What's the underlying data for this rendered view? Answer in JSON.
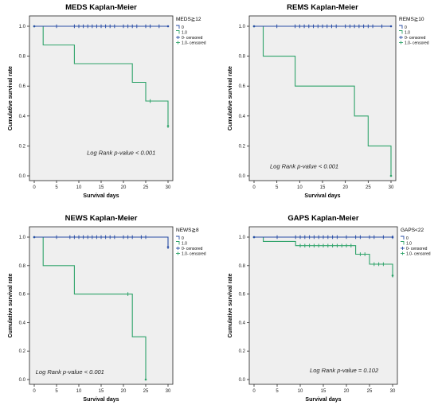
{
  "colors": {
    "blue": "#2a4ea6",
    "green": "#2fa36a",
    "panel_bg": "#efefef"
  },
  "chart_data": [
    {
      "type": "line",
      "title": "MEDS Kaplan-Meier",
      "xlabel": "Survival days",
      "ylabel": "Cumulative survival rate",
      "xlim": [
        0,
        30
      ],
      "ylim": [
        0,
        1
      ],
      "x_ticks": [
        "0",
        "5",
        "10",
        "15",
        "20",
        "25",
        "30"
      ],
      "y_ticks": [
        "0.0",
        "0.2",
        "0.4",
        "0.6",
        "0.8",
        "1.0"
      ],
      "legend_title": "MEDS≧12",
      "legend": [
        "0",
        "1.0",
        "0- censored",
        "1.0- censored"
      ],
      "annotation": "Log Rank p-value < 0.001",
      "series": [
        {
          "name": "0",
          "color": "#2a4ea6",
          "steps": [
            [
              0,
              1.0
            ],
            [
              30,
              1.0
            ]
          ],
          "censored": [
            [
              5,
              1.0
            ],
            [
              9,
              1.0
            ],
            [
              10,
              1.0
            ],
            [
              11,
              1.0
            ],
            [
              12,
              1.0
            ],
            [
              13,
              1.0
            ],
            [
              14,
              1.0
            ],
            [
              15,
              1.0
            ],
            [
              16,
              1.0
            ],
            [
              17,
              1.0
            ],
            [
              18,
              1.0
            ],
            [
              20,
              1.0
            ],
            [
              21,
              1.0
            ],
            [
              22,
              1.0
            ],
            [
              23,
              1.0
            ],
            [
              25,
              1.0
            ],
            [
              26,
              1.0
            ],
            [
              28,
              1.0
            ]
          ]
        },
        {
          "name": "1.0",
          "color": "#2fa36a",
          "steps": [
            [
              0,
              1.0
            ],
            [
              2,
              0.875
            ],
            [
              9,
              0.75
            ],
            [
              22,
              0.625
            ],
            [
              25,
              0.5
            ],
            [
              30,
              0.333
            ]
          ],
          "censored": [
            [
              26,
              0.5
            ],
            [
              30,
              0.333
            ]
          ]
        }
      ]
    },
    {
      "type": "line",
      "title": "REMS Kaplan-Meier",
      "xlabel": "Survival days",
      "ylabel": "Cumulative survival rate",
      "xlim": [
        0,
        30
      ],
      "ylim": [
        0,
        1
      ],
      "x_ticks": [
        "0",
        "5",
        "10",
        "15",
        "20",
        "25",
        "30"
      ],
      "y_ticks": [
        "0.0",
        "0.2",
        "0.4",
        "0.6",
        "0.8",
        "1.0"
      ],
      "legend_title": "REMS≧10",
      "legend": [
        "0",
        "1.0",
        "0- censored",
        "1.0- censored"
      ],
      "annotation": "Log Rank p-value < 0.001",
      "series": [
        {
          "name": "0",
          "color": "#2a4ea6",
          "steps": [
            [
              0,
              1.0
            ],
            [
              30,
              1.0
            ]
          ],
          "censored": [
            [
              5,
              1.0
            ],
            [
              9,
              1.0
            ],
            [
              10,
              1.0
            ],
            [
              11,
              1.0
            ],
            [
              12,
              1.0
            ],
            [
              13,
              1.0
            ],
            [
              14,
              1.0
            ],
            [
              15,
              1.0
            ],
            [
              16,
              1.0
            ],
            [
              17,
              1.0
            ],
            [
              18,
              1.0
            ],
            [
              20,
              1.0
            ],
            [
              21,
              1.0
            ],
            [
              22,
              1.0
            ],
            [
              23,
              1.0
            ],
            [
              24,
              1.0
            ],
            [
              25,
              1.0
            ],
            [
              26,
              1.0
            ],
            [
              28,
              1.0
            ]
          ]
        },
        {
          "name": "1.0",
          "color": "#2fa36a",
          "steps": [
            [
              0,
              1.0
            ],
            [
              2,
              0.8
            ],
            [
              9,
              0.6
            ],
            [
              22,
              0.4
            ],
            [
              25,
              0.2
            ],
            [
              30,
              0.0
            ]
          ],
          "censored": []
        }
      ]
    },
    {
      "type": "line",
      "title": "NEWS Kaplan-Meier",
      "xlabel": "Survival days",
      "ylabel": "Cumulative survival rate",
      "xlim": [
        0,
        30
      ],
      "ylim": [
        0,
        1
      ],
      "x_ticks": [
        "0",
        "5",
        "10",
        "15",
        "20",
        "25",
        "30"
      ],
      "y_ticks": [
        "0.0",
        "0.2",
        "0.4",
        "0.6",
        "0.8",
        "1.0"
      ],
      "legend_title": "NEWS≧8",
      "legend": [
        "0",
        "1.0",
        "0- censored",
        "1.0- censored"
      ],
      "annotation": "Log Rank p-value < 0.001",
      "series": [
        {
          "name": "0",
          "color": "#2a4ea6",
          "steps": [
            [
              0,
              1.0
            ],
            [
              30,
              0.93
            ]
          ],
          "censored": [
            [
              5,
              1.0
            ],
            [
              8,
              1.0
            ],
            [
              9,
              1.0
            ],
            [
              10,
              1.0
            ],
            [
              11,
              1.0
            ],
            [
              12,
              1.0
            ],
            [
              13,
              1.0
            ],
            [
              14,
              1.0
            ],
            [
              15,
              1.0
            ],
            [
              16,
              1.0
            ],
            [
              17,
              1.0
            ],
            [
              18,
              1.0
            ],
            [
              20,
              1.0
            ],
            [
              21,
              1.0
            ],
            [
              22,
              1.0
            ],
            [
              24,
              1.0
            ],
            [
              25,
              1.0
            ],
            [
              30,
              0.93
            ]
          ]
        },
        {
          "name": "1.0",
          "color": "#2fa36a",
          "steps": [
            [
              0,
              1.0
            ],
            [
              2,
              0.8
            ],
            [
              9,
              0.6
            ],
            [
              22,
              0.3
            ],
            [
              25,
              0.0
            ]
          ],
          "censored": [
            [
              21,
              0.6
            ]
          ]
        }
      ]
    },
    {
      "type": "line",
      "title": "GAPS Kaplan-Meier",
      "xlabel": "Survival days",
      "ylabel": "Cumulative survival rate",
      "xlim": [
        0,
        30
      ],
      "ylim": [
        0,
        1
      ],
      "x_ticks": [
        "0",
        "5",
        "10",
        "15",
        "20",
        "25",
        "30"
      ],
      "y_ticks": [
        "0.0",
        "0.2",
        "0.4",
        "0.6",
        "0.8",
        "1.0"
      ],
      "legend_title": "GAPS<22",
      "legend": [
        "0",
        "1.0",
        "0- censored",
        "1.0- censored"
      ],
      "annotation": "Log Rank p-value = 0.102",
      "series": [
        {
          "name": "0",
          "color": "#2a4ea6",
          "steps": [
            [
              0,
              1.0
            ],
            [
              30,
              1.0
            ]
          ],
          "censored": [
            [
              5,
              1.0
            ],
            [
              9,
              1.0
            ],
            [
              10,
              1.0
            ],
            [
              11,
              1.0
            ],
            [
              12,
              1.0
            ],
            [
              13,
              1.0
            ],
            [
              14,
              1.0
            ],
            [
              15,
              1.0
            ],
            [
              16,
              1.0
            ],
            [
              17,
              1.0
            ],
            [
              18,
              1.0
            ],
            [
              20,
              1.0
            ],
            [
              22,
              1.0
            ],
            [
              23,
              1.0
            ],
            [
              25,
              1.0
            ],
            [
              26,
              1.0
            ],
            [
              28,
              1.0
            ],
            [
              30,
              1.0
            ]
          ]
        },
        {
          "name": "1.0",
          "color": "#2fa36a",
          "steps": [
            [
              0,
              1.0
            ],
            [
              2,
              0.97
            ],
            [
              9,
              0.94
            ],
            [
              22,
              0.88
            ],
            [
              25,
              0.81
            ],
            [
              30,
              0.73
            ]
          ],
          "censored": [
            [
              10,
              0.94
            ],
            [
              11,
              0.94
            ],
            [
              12,
              0.94
            ],
            [
              13,
              0.94
            ],
            [
              14,
              0.94
            ],
            [
              15,
              0.94
            ],
            [
              16,
              0.94
            ],
            [
              17,
              0.94
            ],
            [
              18,
              0.94
            ],
            [
              19,
              0.94
            ],
            [
              20,
              0.94
            ],
            [
              21,
              0.94
            ],
            [
              23,
              0.88
            ],
            [
              24,
              0.88
            ],
            [
              26,
              0.81
            ],
            [
              27,
              0.81
            ],
            [
              28,
              0.81
            ],
            [
              30,
              0.73
            ]
          ]
        }
      ]
    }
  ]
}
